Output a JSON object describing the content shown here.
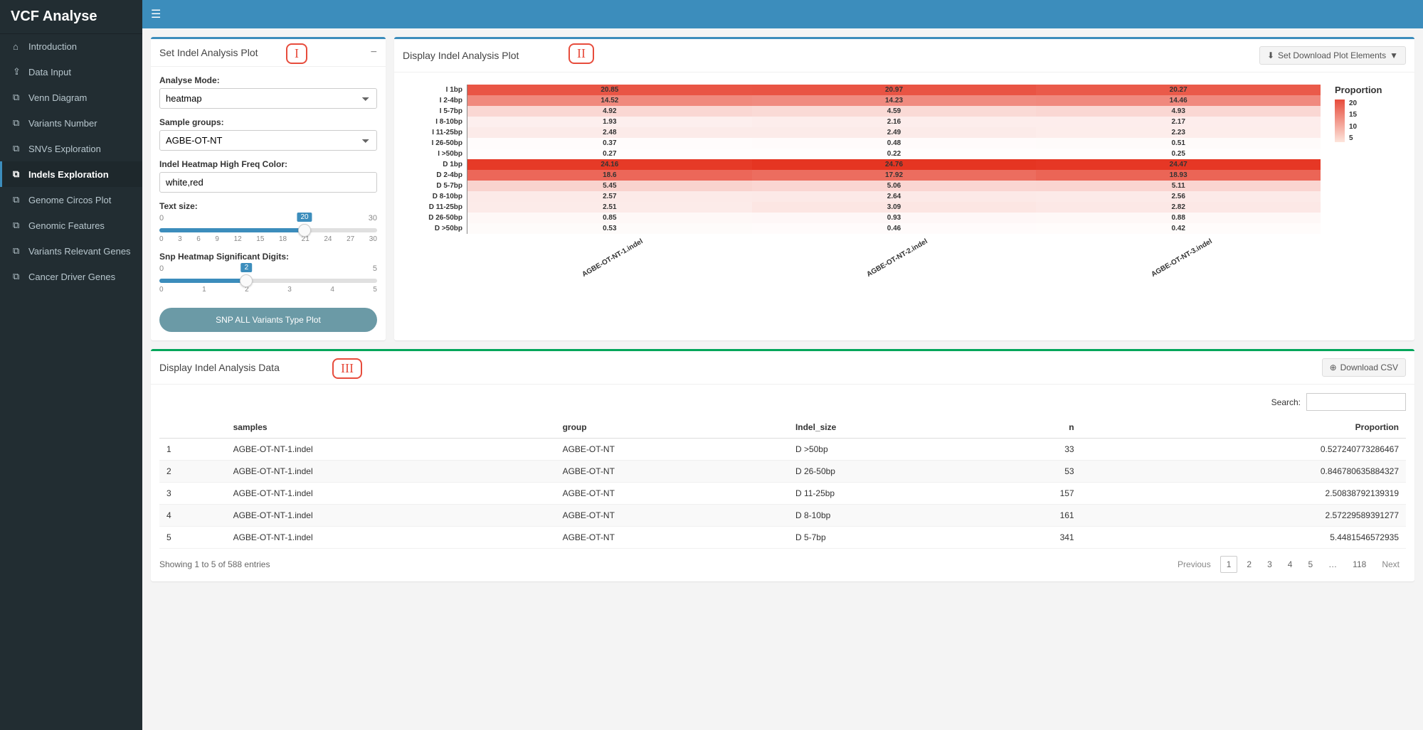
{
  "app_title": "VCF Analyse",
  "sidebar": {
    "items": [
      {
        "label": "Introduction",
        "icon": "home"
      },
      {
        "label": "Data Input",
        "icon": "upload"
      },
      {
        "label": "Venn Diagram",
        "icon": "chart"
      },
      {
        "label": "Variants Number",
        "icon": "chart"
      },
      {
        "label": "SNVs Exploration",
        "icon": "chart"
      },
      {
        "label": "Indels Exploration",
        "icon": "chart",
        "active": true
      },
      {
        "label": "Genome Circos Plot",
        "icon": "chart"
      },
      {
        "label": "Genomic Features",
        "icon": "chart"
      },
      {
        "label": "Variants Relevant Genes",
        "icon": "chart"
      },
      {
        "label": "Cancer Driver Genes",
        "icon": "chart"
      }
    ]
  },
  "panel_settings": {
    "title": "Set Indel Analysis Plot",
    "roman": "I",
    "analyse_mode": {
      "label": "Analyse Mode:",
      "value": "heatmap"
    },
    "sample_groups": {
      "label": "Sample groups:",
      "value": "AGBE-OT-NT"
    },
    "color": {
      "label": "Indel Heatmap High Freq Color:",
      "value": "white,red"
    },
    "text_size": {
      "label": "Text size:",
      "min": 0,
      "max": 30,
      "value": 20,
      "ticks": [
        0,
        3,
        6,
        9,
        12,
        15,
        18,
        21,
        24,
        27,
        30
      ]
    },
    "sig_digits": {
      "label": "Snp Heatmap Significant Digits:",
      "min": 0,
      "max": 5,
      "value": 2,
      "ticks": [
        0,
        1,
        2,
        3,
        4,
        5
      ]
    },
    "button": "SNP ALL Variants Type Plot"
  },
  "panel_plot": {
    "title": "Display Indel Analysis Plot",
    "roman": "II",
    "download_btn": "Set Download Plot Elements",
    "legend_title": "Proportion",
    "legend_ticks": [
      "20",
      "15",
      "10",
      "5"
    ],
    "heatmap": {
      "type": "heatmap",
      "row_labels": [
        "I 1bp",
        "I 2-4bp",
        "I 5-7bp",
        "I 8-10bp",
        "I 11-25bp",
        "I 26-50bp",
        "I >50bp",
        "D 1bp",
        "D 2-4bp",
        "D 5-7bp",
        "D 8-10bp",
        "D 11-25bp",
        "D 26-50bp",
        "D >50bp"
      ],
      "col_labels": [
        "AGBE-OT-NT-1.indel",
        "AGBE-OT-NT-2.indel",
        "AGBE-OT-NT-3.indel"
      ],
      "values": [
        [
          20.85,
          20.97,
          20.27
        ],
        [
          14.52,
          14.23,
          14.46
        ],
        [
          4.92,
          4.59,
          4.93
        ],
        [
          1.93,
          2.16,
          2.17
        ],
        [
          2.48,
          2.49,
          2.23
        ],
        [
          0.37,
          0.48,
          0.51
        ],
        [
          0.27,
          0.22,
          0.25
        ],
        [
          24.16,
          24.76,
          24.47
        ],
        [
          18.6,
          17.92,
          18.93
        ],
        [
          5.45,
          5.06,
          5.11
        ],
        [
          2.57,
          2.64,
          2.56
        ],
        [
          2.51,
          3.09,
          2.82
        ],
        [
          0.85,
          0.93,
          0.88
        ],
        [
          0.53,
          0.46,
          0.42
        ]
      ],
      "color_low": "#ffffff",
      "color_high": "#e53320",
      "value_min": 0,
      "value_max": 25,
      "text_color": "#000000",
      "label_fontsize": 10
    }
  },
  "panel_data": {
    "title": "Display Indel Analysis Data",
    "roman": "III",
    "download_btn": "Download CSV",
    "search_label": "Search:",
    "columns": [
      "",
      "samples",
      "group",
      "Indel_size",
      "n",
      "Proportion"
    ],
    "rows": [
      [
        "1",
        "AGBE-OT-NT-1.indel",
        "AGBE-OT-NT",
        "D >50bp",
        "33",
        "0.527240773286467"
      ],
      [
        "2",
        "AGBE-OT-NT-1.indel",
        "AGBE-OT-NT",
        "D 26-50bp",
        "53",
        "0.846780635884327"
      ],
      [
        "3",
        "AGBE-OT-NT-1.indel",
        "AGBE-OT-NT",
        "D 11-25bp",
        "157",
        "2.50838792139319"
      ],
      [
        "4",
        "AGBE-OT-NT-1.indel",
        "AGBE-OT-NT",
        "D 8-10bp",
        "161",
        "2.57229589391277"
      ],
      [
        "5",
        "AGBE-OT-NT-1.indel",
        "AGBE-OT-NT",
        "D 5-7bp",
        "341",
        "5.4481546572935"
      ]
    ],
    "summary": "Showing 1 to 5 of 588 entries",
    "pagination": {
      "prev": "Previous",
      "pages": [
        "1",
        "2",
        "3",
        "4",
        "5",
        "…",
        "118"
      ],
      "next": "Next",
      "active": "1"
    }
  }
}
